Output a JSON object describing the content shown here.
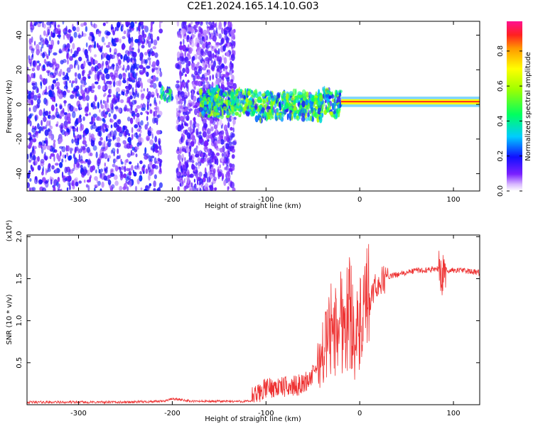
{
  "title": "C2E1.2024.165.14.10.G03",
  "chart_data": [
    {
      "type": "heatmap",
      "xlabel": "Height of straight line (km)",
      "ylabel": "Frequency (Hz)",
      "xlim": [
        -355,
        128
      ],
      "ylim": [
        -50,
        48
      ],
      "xticks": [
        -300,
        -200,
        -100,
        0,
        100
      ],
      "yticks": [
        -40,
        -20,
        0,
        20,
        40
      ],
      "colorbar": {
        "label": "Normalized spectral amplitude",
        "range": [
          0,
          0.97
        ],
        "ticks": [
          0.0,
          0.2,
          0.4,
          0.6,
          0.8
        ]
      },
      "regions": [
        {
          "x": [
            -355,
            -212
          ],
          "freq": [
            -50,
            48
          ],
          "amplitude": 0.15,
          "pattern": "scattered noise"
        },
        {
          "x": [
            -212,
            -200
          ],
          "freq": [
            2,
            10
          ],
          "amplitude": 0.45,
          "pattern": "concentrated"
        },
        {
          "x": [
            -195,
            -133
          ],
          "freq": [
            -50,
            48
          ],
          "amplitude": 0.12,
          "pattern": "scattered noise"
        },
        {
          "x": [
            -170,
            -20
          ],
          "freq": [
            -8,
            10
          ],
          "amplitude": 0.45,
          "pattern": "concentrated band"
        },
        {
          "x": [
            -20,
            128
          ],
          "freq": [
            0,
            3
          ],
          "amplitude": 0.92,
          "pattern": "narrow line"
        }
      ]
    },
    {
      "type": "line",
      "xlabel": "Height of straight line (km)",
      "ylabel": "SNR (10 * v/v)",
      "yscale_note": "(x10⁴)",
      "xlim": [
        -355,
        128
      ],
      "ylim": [
        0,
        2.02
      ],
      "xticks": [
        -300,
        -200,
        -100,
        0,
        100
      ],
      "yticks": [
        0.5,
        1.0,
        1.5,
        2.0
      ],
      "ytick_labels": [
        "0.5",
        "1.0",
        "1.5",
        "2.0"
      ],
      "color": "#ee3333",
      "x": [
        -355,
        -300,
        -250,
        -210,
        -200,
        -190,
        -180,
        -150,
        -120,
        -112,
        -100,
        -90,
        -80,
        -70,
        -60,
        -50,
        -45,
        -40,
        -35,
        -30,
        -25,
        -20,
        -15,
        -10,
        -5,
        0,
        5,
        10,
        15,
        20,
        25,
        30,
        40,
        50,
        60,
        70,
        80,
        85,
        88,
        90,
        95,
        100,
        110,
        120,
        128
      ],
      "y": [
        0.03,
        0.03,
        0.03,
        0.04,
        0.07,
        0.06,
        0.04,
        0.04,
        0.04,
        0.05,
        0.15,
        0.16,
        0.16,
        0.17,
        0.2,
        0.3,
        0.45,
        0.6,
        0.75,
        0.95,
        0.85,
        1.05,
        1.0,
        1.15,
        0.8,
        0.9,
        1.05,
        1.2,
        1.35,
        1.45,
        1.48,
        1.52,
        1.55,
        1.57,
        1.6,
        1.6,
        1.62,
        1.62,
        1.5,
        1.6,
        1.6,
        1.6,
        1.6,
        1.58,
        1.57
      ]
    }
  ]
}
